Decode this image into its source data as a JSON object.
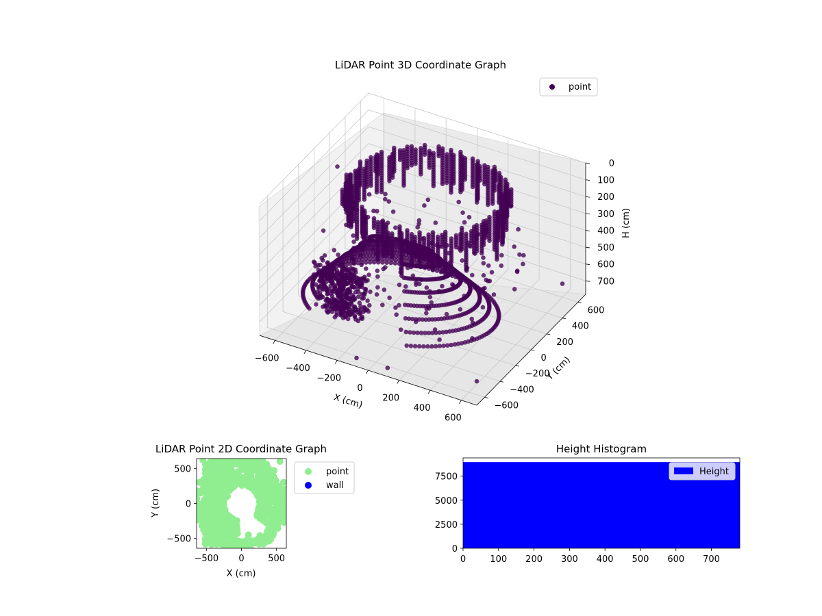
{
  "chart_data": [
    {
      "type": "scatter",
      "projection": "3d",
      "title": "LiDAR Point 3D Coordinate Graph",
      "xlabel": "X (cm)",
      "ylabel": "Y (cm)",
      "zlabel": "H (cm)",
      "xlim": [
        -700,
        700
      ],
      "ylim": [
        -700,
        700
      ],
      "zlim": [
        780,
        0
      ],
      "xticks": [
        -600,
        -400,
        -200,
        0,
        200,
        400,
        600
      ],
      "yticks": [
        -600,
        -400,
        -200,
        0,
        200,
        400,
        600
      ],
      "zticks": [
        0,
        100,
        200,
        300,
        400,
        500,
        600,
        700
      ],
      "legend_position": "upper-right",
      "series": [
        {
          "name": "point",
          "color": "#440154",
          "description": "dense LiDAR sweep: concentric arcs with vertical wall columns",
          "points": [
            [
              -580,
              60,
              100
            ],
            [
              -600,
              -80,
              420
            ],
            [
              -500,
              -300,
              450
            ],
            [
              -420,
              -400,
              520
            ],
            [
              -300,
              -500,
              560
            ],
            [
              -200,
              -560,
              600
            ],
            [
              400,
              -400,
              300
            ],
            [
              500,
              -200,
              380
            ],
            [
              560,
              100,
              400
            ],
            [
              500,
              300,
              420
            ],
            [
              200,
              500,
              100
            ],
            [
              -200,
              500,
              120
            ],
            [
              -400,
              400,
              150
            ],
            [
              600,
              600,
              700
            ],
            [
              650,
              -600,
              700
            ],
            [
              -100,
              -650,
              760
            ],
            [
              100,
              -650,
              760
            ]
          ]
        }
      ]
    },
    {
      "type": "scatter",
      "title": "LiDAR Point 2D Coordinate Graph",
      "xlabel": "X (cm)",
      "ylabel": "Y (cm)",
      "xlim": [
        -640,
        640
      ],
      "ylim": [
        -640,
        640
      ],
      "xticks": [
        -500,
        0,
        500
      ],
      "yticks": [
        -500,
        0,
        500
      ],
      "legend_position": "outside-right",
      "series": [
        {
          "name": "point",
          "color": "#90ee90",
          "points": [
            [
              -550,
              620
            ],
            [
              -600,
              300
            ],
            [
              -560,
              0
            ],
            [
              -520,
              -300
            ],
            [
              -500,
              -520
            ],
            [
              -300,
              640
            ],
            [
              0,
              640
            ],
            [
              300,
              620
            ],
            [
              550,
              600
            ],
            [
              600,
              300
            ],
            [
              400,
              150
            ],
            [
              500,
              0
            ],
            [
              300,
              -200
            ],
            [
              100,
              -450
            ],
            [
              -100,
              -640
            ],
            [
              -350,
              250
            ],
            [
              -200,
              100
            ],
            [
              -400,
              -100
            ],
            [
              -250,
              -400
            ]
          ]
        },
        {
          "name": "wall",
          "color": "#0000ff",
          "points": []
        }
      ]
    },
    {
      "type": "bar",
      "title": "Height Histogram",
      "xlabel": "",
      "ylabel": "",
      "xlim": [
        0,
        780
      ],
      "ylim": [
        0,
        9400
      ],
      "xticks": [
        0,
        100,
        200,
        300,
        400,
        500,
        600,
        700
      ],
      "yticks": [
        0,
        2500,
        5000,
        7500
      ],
      "legend_position": "upper-right",
      "series": [
        {
          "name": "Height",
          "color": "#0000ff",
          "bins": [
            [
              0,
              780
            ]
          ],
          "values": [
            8960
          ]
        }
      ]
    }
  ]
}
